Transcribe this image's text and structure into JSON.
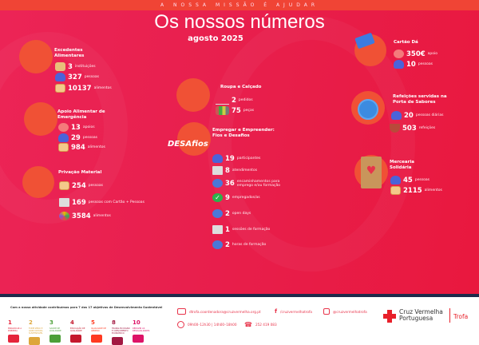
{
  "header": {
    "tagline": "A NOSSA MISSÃO É AJUDAR",
    "title": "Os nossos números",
    "subtitle": "agosto 2025"
  },
  "sections": {
    "excedentes": {
      "title": "Excedentes Alimentares",
      "rows": [
        {
          "num": "3",
          "label": "instituições"
        },
        {
          "num": "327",
          "label": "pessoas"
        },
        {
          "num": "10137",
          "label": "alimentos"
        }
      ]
    },
    "apoio": {
      "title": "Apoio Alimentar de Emergência",
      "rows": [
        {
          "num": "13",
          "label": "apoios"
        },
        {
          "num": "29",
          "label": "pessoas"
        },
        {
          "num": "984",
          "label": "alimentos"
        }
      ]
    },
    "privacao": {
      "title": "Privação Material",
      "rows": [
        {
          "num": "254",
          "label": "pessoas"
        },
        {
          "num": "169",
          "label": "pessoas com Cartão + Pessoas"
        },
        {
          "num": "3584",
          "label": "alimentos"
        }
      ]
    },
    "roupa": {
      "title": "Roupa e Calçado",
      "rows": [
        {
          "num": "2",
          "label": "pedidos"
        },
        {
          "num": "75",
          "label": "peças"
        }
      ]
    },
    "empregar": {
      "title": "Empregar e Empreender: Fios e Desafios",
      "logo": "DESAfios",
      "rows": [
        {
          "num": "19",
          "label": "participantes"
        },
        {
          "num": "8",
          "label": "atendimentos"
        },
        {
          "num": "36",
          "label": "encaminhamentos para emprego e/ou formação"
        },
        {
          "num": "9",
          "label": "empregados/as"
        },
        {
          "num": "2",
          "label": "open days"
        },
        {
          "num": "1",
          "label": "sessões de formação"
        },
        {
          "num": "2",
          "label": "horas de formação"
        }
      ]
    },
    "cartao": {
      "title": "Cartão Dá",
      "rows": [
        {
          "num": "350€",
          "label": "apoio"
        },
        {
          "num": "10",
          "label": "pessoas"
        }
      ]
    },
    "refeicoes": {
      "title": "Refeições servidas na Porta de Sabores",
      "rows": [
        {
          "num": "20",
          "label": "pessoas diárias"
        },
        {
          "num": "503",
          "label": "refeições"
        }
      ]
    },
    "mercearia": {
      "title": "Mercearia Solidária",
      "rows": [
        {
          "num": "45",
          "label": "pessoas"
        },
        {
          "num": "2115",
          "label": "alimentos"
        }
      ]
    }
  },
  "footer": {
    "sdg_text": "Com a nossa atividade contribuímos para 7 dos 17 objetivos de Desenvolvimento Sustentável",
    "sdgs": [
      {
        "n": "1",
        "t": "ERRADICAR A POBREZA",
        "color": "#e5243b"
      },
      {
        "n": "2",
        "t": "FOME ZERO E AGRICULTURA SUSTENTÁVEL",
        "color": "#dda63a"
      },
      {
        "n": "3",
        "t": "SAÚDE DE QUALIDADE",
        "color": "#4c9f38"
      },
      {
        "n": "4",
        "t": "EDUCAÇÃO DE QUALIDADE",
        "color": "#c5192d"
      },
      {
        "n": "5",
        "t": "IGUALDADE DE GÉNERO",
        "color": "#ff3a21"
      },
      {
        "n": "8",
        "t": "TRABALHO DIGNO E CRESCIMENTO ECONÓMICO",
        "color": "#a21942"
      },
      {
        "n": "10",
        "t": "REDUZIR AS DESIGUALDADES",
        "color": "#dd1367"
      }
    ],
    "email": "dtrofa.coordenadora@cruzvermelha.org.pt",
    "facebook": "/cruzvermelhatrofa",
    "instagram": "@cruzvermelhatrofa",
    "hours": "09h00–12h30 | 14h00–18h00",
    "phone": "252 419 083",
    "brand": {
      "name1": "Cruz Vermelha",
      "name2": "Portuguesa",
      "branch": "Trofa",
      "color": "#e8202a"
    }
  }
}
